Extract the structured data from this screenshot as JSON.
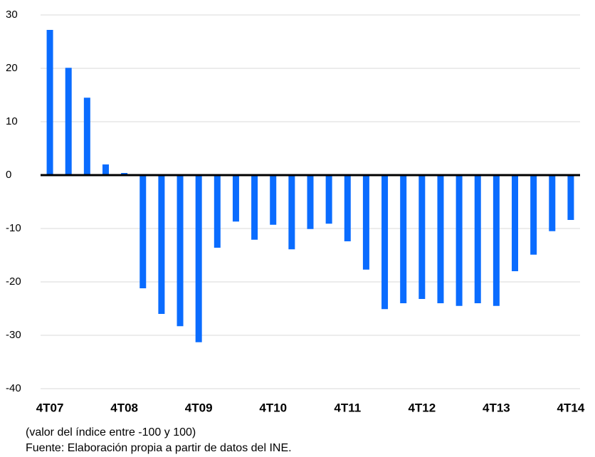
{
  "chart_data": {
    "type": "bar",
    "categories": [
      "4T07",
      null,
      null,
      null,
      "4T08",
      null,
      null,
      null,
      "4T09",
      null,
      null,
      null,
      "4T10",
      null,
      null,
      null,
      "4T11",
      null,
      null,
      null,
      "4T12",
      null,
      null,
      null,
      "4T13",
      null,
      null,
      null,
      "4T14"
    ],
    "values": [
      27.2,
      20.1,
      14.5,
      2.0,
      0.4,
      -21.2,
      -26.0,
      -28.3,
      -31.3,
      -13.6,
      -8.7,
      -12.1,
      -9.3,
      -13.9,
      -10.1,
      -9.1,
      -12.4,
      -17.7,
      -25.1,
      -24.0,
      -23.2,
      -24.0,
      -24.5,
      -24.0,
      -24.5,
      -18.0,
      -14.9,
      -10.5,
      -8.4
    ],
    "color": "#0a6cff",
    "ylim": [
      -40,
      30
    ],
    "yticks": [
      -40,
      -30,
      -20,
      -10,
      0,
      10,
      20,
      30
    ],
    "grid": true,
    "notes": [
      "(valor del índice entre -100 y 100)",
      "Fuente: Elaboración propia a partir de datos del INE."
    ]
  }
}
